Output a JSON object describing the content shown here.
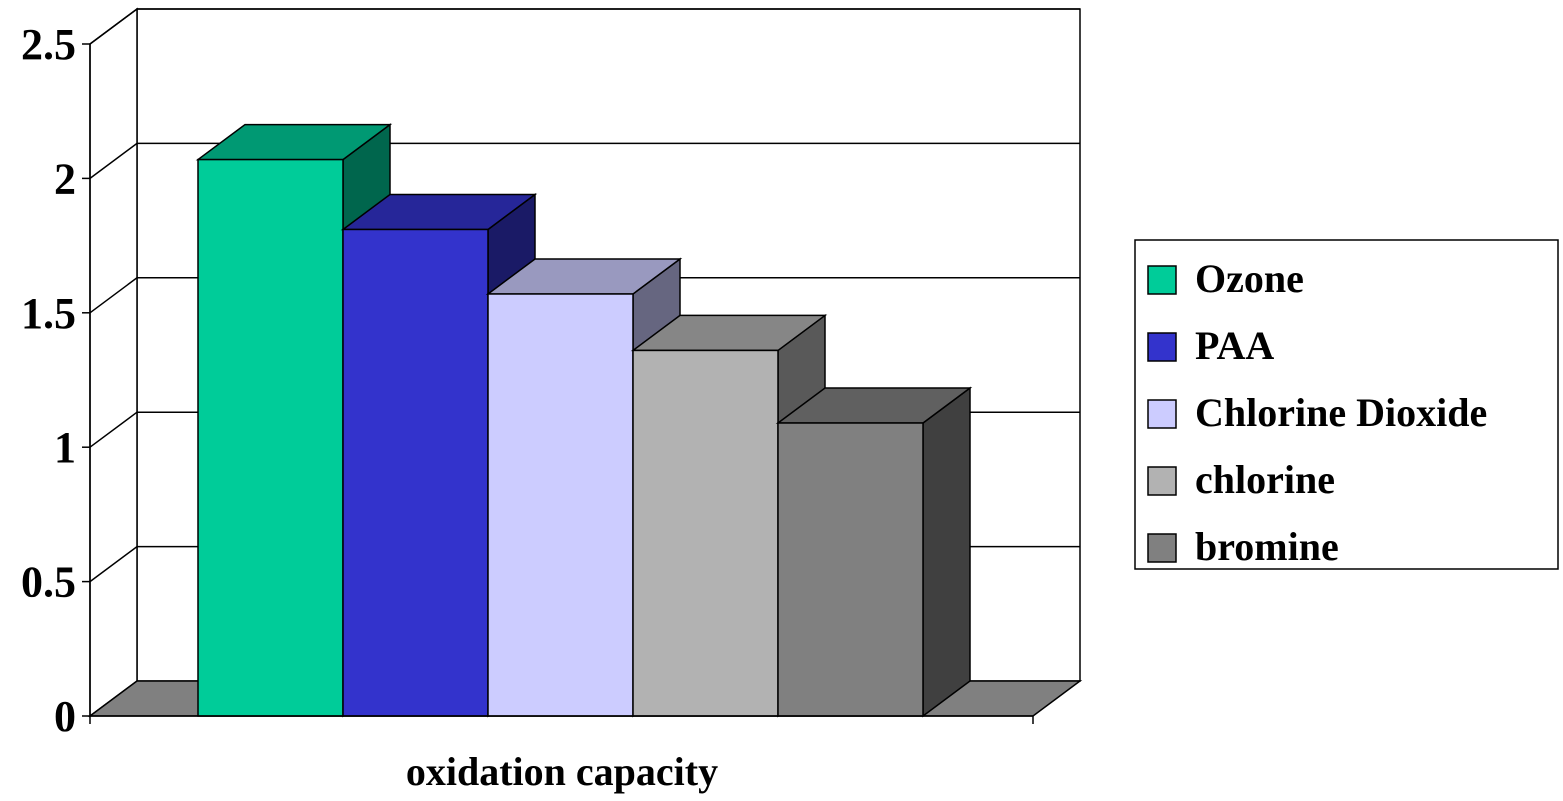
{
  "chart_data": {
    "type": "bar",
    "style": "3d-clustered-column",
    "title": "",
    "xlabel": "oxidation capacity",
    "ylabel": "",
    "categories": [
      "oxidation capacity"
    ],
    "series": [
      {
        "name": "Ozone",
        "values": [
          2.07
        ],
        "color": "#00cc99"
      },
      {
        "name": "PAA",
        "values": [
          1.81
        ],
        "color": "#3333cc"
      },
      {
        "name": "Chlorine Dioxide",
        "values": [
          1.57
        ],
        "color": "#ccccff"
      },
      {
        "name": "chlorine",
        "values": [
          1.36
        ],
        "color": "#b2b2b2"
      },
      {
        "name": "bromine",
        "values": [
          1.09
        ],
        "color": "#808080"
      }
    ],
    "ylim": [
      0,
      2.5
    ],
    "yticks": [
      "0",
      "0.5",
      "1",
      "1.5",
      "2",
      "2.5"
    ],
    "grid": true,
    "legend_position": "right",
    "colors": {
      "floor": "#808080",
      "gridline": "#000000",
      "wall": "#ffffff"
    }
  }
}
